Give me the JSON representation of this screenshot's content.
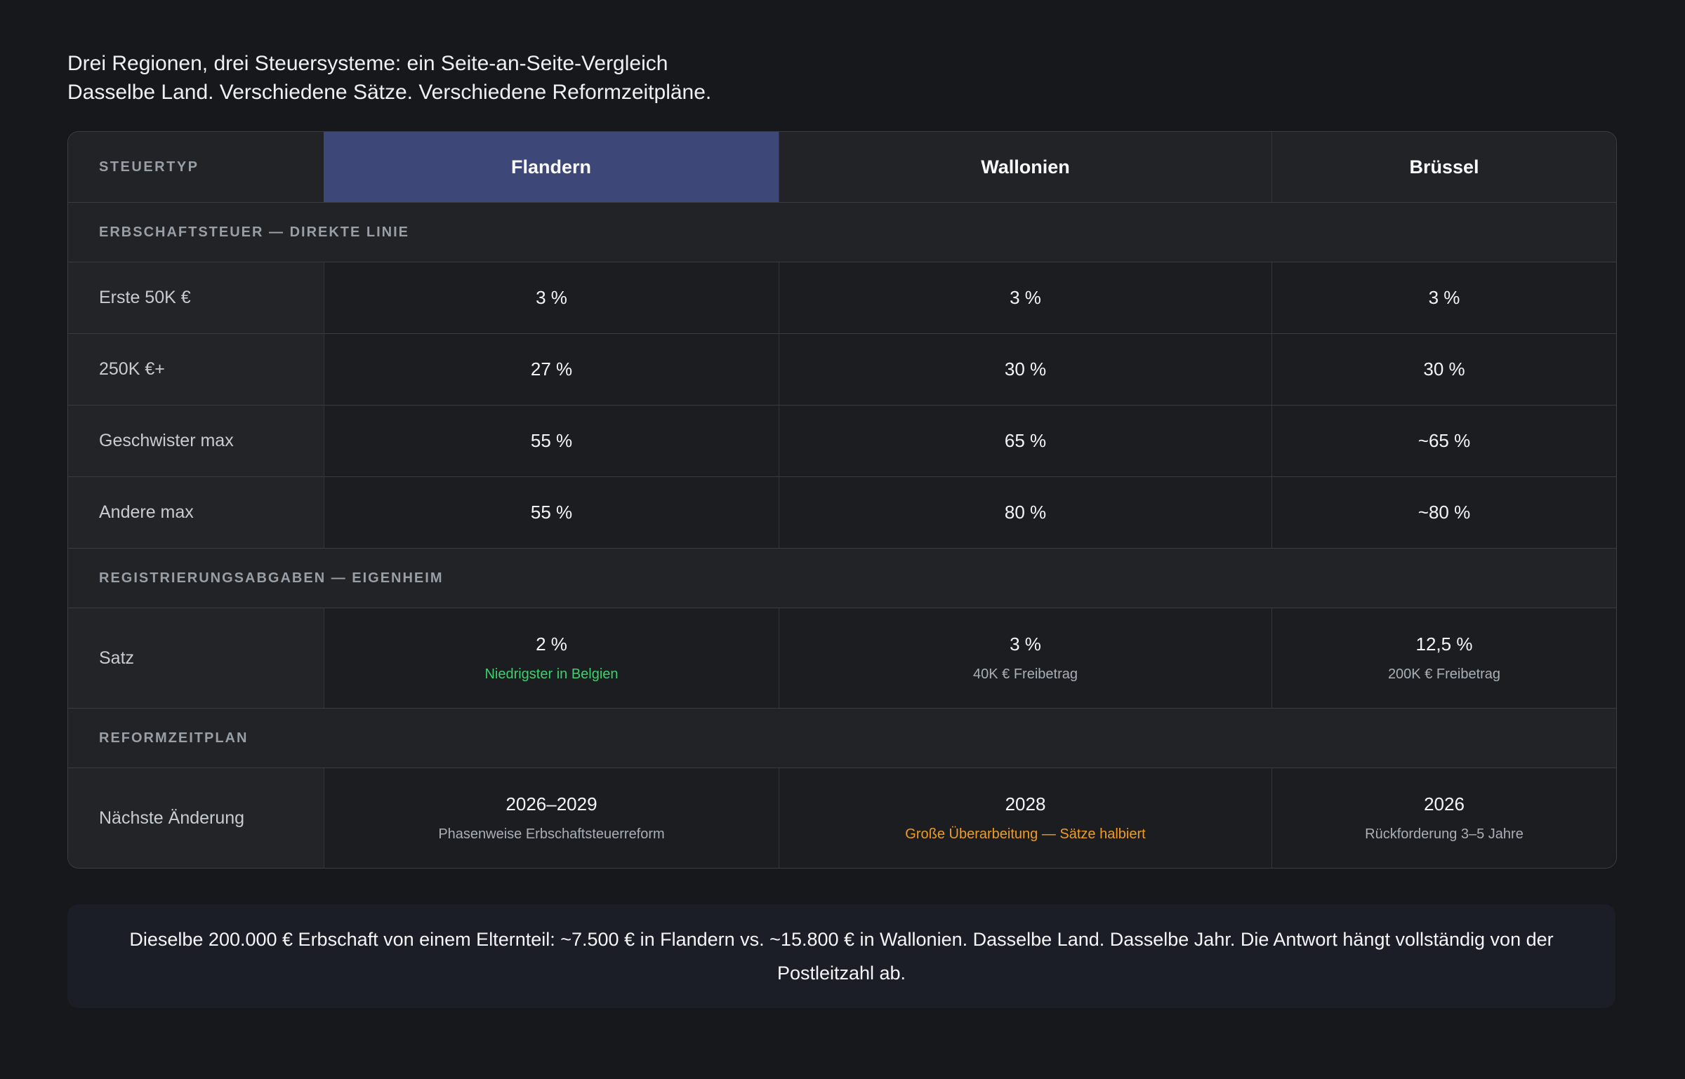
{
  "page": {
    "title": "Drei Regionen, drei Steuersysteme: ein Seite-an-Seite-Vergleich",
    "subtitle": "Dasselbe Land. Verschiedene Sätze. Verschiedene Reformzeitpläne."
  },
  "colors": {
    "background": "#17181c",
    "table_cell": "#1b1d21",
    "table_header": "#212327",
    "accent_blue": "#3e4878",
    "positive_green": "#3ecf6e",
    "warning_orange": "#f09b22"
  },
  "table": {
    "columns": [
      "STEUERTYP",
      "Flandern",
      "Wallonien",
      "Brüssel"
    ],
    "highlighted_column": "Flandern",
    "sections": [
      {
        "title": "ERBSCHAFTSTEUER — DIREKTE LINIE",
        "rows": [
          {
            "label": "Erste 50K €",
            "cells": [
              {
                "value": "3 %"
              },
              {
                "value": "3 %"
              },
              {
                "value": "3 %"
              }
            ]
          },
          {
            "label": "250K €+",
            "cells": [
              {
                "value": "27 %"
              },
              {
                "value": "30 %"
              },
              {
                "value": "30 %"
              }
            ]
          },
          {
            "label": "Geschwister max",
            "cells": [
              {
                "value": "55 %"
              },
              {
                "value": "65 %"
              },
              {
                "value": "~65 %"
              }
            ]
          },
          {
            "label": "Andere max",
            "cells": [
              {
                "value": "55 %"
              },
              {
                "value": "80 %"
              },
              {
                "value": "~80 %"
              }
            ]
          }
        ]
      },
      {
        "title": "REGISTRIERUNGSABGABEN — EIGENHEIM",
        "rows": [
          {
            "label": "Satz",
            "cells": [
              {
                "value": "2 %",
                "note": "Niedrigster in Belgien",
                "note_color": "green"
              },
              {
                "value": "3 %",
                "note": "40K € Freibetrag",
                "note_color": "gray"
              },
              {
                "value": "12,5 %",
                "note": "200K € Freibetrag",
                "note_color": "gray"
              }
            ]
          }
        ]
      },
      {
        "title": "REFORMZEITPLAN",
        "rows": [
          {
            "label": "Nächste Änderung",
            "cells": [
              {
                "value": "2026–2029",
                "note": "Phasenweise Erbschaftsteuerreform",
                "note_color": "gray"
              },
              {
                "value": "2028",
                "note": "Große Überarbeitung — Sätze halbiert",
                "note_color": "orange"
              },
              {
                "value": "2026",
                "note": "Rückforderung 3–5 Jahre",
                "note_color": "gray"
              }
            ]
          }
        ]
      }
    ]
  },
  "footer": {
    "note": "Dieselbe 200.000 € Erbschaft von einem Elternteil: ~7.500 € in Flandern vs. ~15.800 € in Wallonien. Dasselbe Land. Dasselbe Jahr. Die Antwort hängt vollständig von der Postleitzahl ab."
  },
  "chart_data": {
    "type": "table",
    "title": "Drei Regionen, drei Steuersysteme: ein Seite-an-Seite-Vergleich",
    "subtitle": "Dasselbe Land. Verschiedene Sätze. Verschiedene Reformzeitpläne.",
    "columns": [
      "Steuertyp",
      "Flandern",
      "Wallonien",
      "Brüssel"
    ],
    "sections": [
      {
        "section": "Erbschaftsteuer — direkte Linie",
        "rows": [
          [
            "Erste 50K €",
            "3 %",
            "3 %",
            "3 %"
          ],
          [
            "250K €+",
            "27 %",
            "30 %",
            "30 %"
          ],
          [
            "Geschwister max",
            "55 %",
            "65 %",
            "~65 %"
          ],
          [
            "Andere max",
            "55 %",
            "80 %",
            "~80 %"
          ]
        ]
      },
      {
        "section": "Registrierungsabgaben — Eigenheim",
        "rows": [
          [
            "Satz",
            "2 % (Niedrigster in Belgien)",
            "3 % (40K € Freibetrag)",
            "12,5 % (200K € Freibetrag)"
          ]
        ]
      },
      {
        "section": "Reformzeitplan",
        "rows": [
          [
            "Nächste Änderung",
            "2026–2029 (Phasenweise Erbschaftsteuerreform)",
            "2028 (Große Überarbeitung — Sätze halbiert)",
            "2026 (Rückforderung 3–5 Jahre)"
          ]
        ]
      }
    ],
    "footnote": "Dieselbe 200.000 € Erbschaft von einem Elternteil: ~7.500 € in Flandern vs. ~15.800 € in Wallonien. Dasselbe Land. Dasselbe Jahr. Die Antwort hängt vollständig von der Postleitzahl ab."
  }
}
